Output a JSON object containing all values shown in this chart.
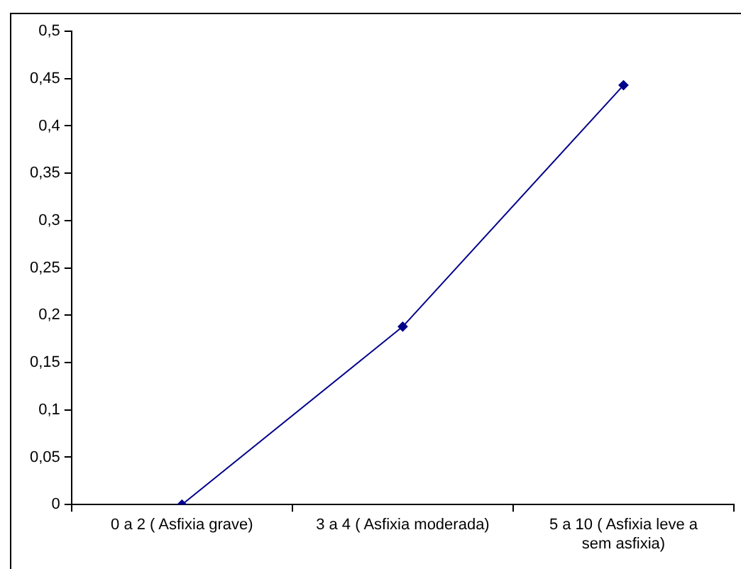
{
  "chart_data": {
    "type": "line",
    "categories": [
      "0 a 2 ( Asfixia grave)",
      "3 a 4 ( Asfixia moderada)",
      "5 a 10 ( Asfixia leve a sem asfixia)"
    ],
    "series": [
      {
        "color": "#00008b",
        "values": [
          0,
          0.188,
          0.443
        ]
      }
    ],
    "ylim": [
      0,
      0.5
    ],
    "yticks": [
      {
        "value": 0,
        "label": "0"
      },
      {
        "value": 0.05,
        "label": "0,05"
      },
      {
        "value": 0.1,
        "label": "0,1"
      },
      {
        "value": 0.15,
        "label": "0,15"
      },
      {
        "value": 0.2,
        "label": "0,2"
      },
      {
        "value": 0.25,
        "label": "0,25"
      },
      {
        "value": 0.3,
        "label": "0,3"
      },
      {
        "value": 0.35,
        "label": "0,35"
      },
      {
        "value": 0.4,
        "label": "0,4"
      },
      {
        "value": 0.45,
        "label": "0,45"
      },
      {
        "value": 0.5,
        "label": "0,5"
      }
    ],
    "grid": false,
    "legend": false,
    "marker": "diamond",
    "line_style": "solid"
  }
}
